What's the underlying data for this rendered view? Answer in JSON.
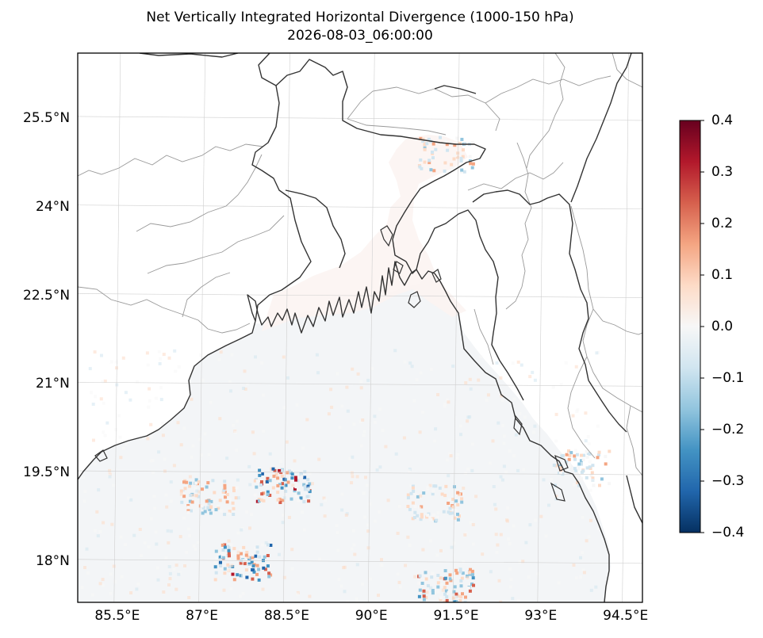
{
  "title": "Net Vertically Integrated Horizontal Divergence (1000-150 hPa)",
  "subtitle": "2026-08-03_06:00:00",
  "lon_ticks": [
    {
      "label": "85.5°E",
      "value": 85.5
    },
    {
      "label": "87°E",
      "value": 87.0
    },
    {
      "label": "88.5°E",
      "value": 88.5
    },
    {
      "label": "90°E",
      "value": 90.0
    },
    {
      "label": "91.5°E",
      "value": 91.5
    },
    {
      "label": "93°E",
      "value": 93.0
    },
    {
      "label": "94.5°E",
      "value": 94.5
    }
  ],
  "lat_ticks": [
    {
      "label": "25.5°N",
      "value": 25.5
    },
    {
      "label": "24°N",
      "value": 24.0
    },
    {
      "label": "22.5°N",
      "value": 22.5
    },
    {
      "label": "21°N",
      "value": 21.0
    },
    {
      "label": "19.5°N",
      "value": 19.5
    },
    {
      "label": "18°N",
      "value": 18.0
    }
  ],
  "map_extent": {
    "lon": [
      84.8,
      94.8
    ],
    "lat": [
      17.3,
      26.6
    ]
  },
  "colorbar": {
    "colormap": "RdBu_r",
    "range": [
      -0.4,
      0.4
    ],
    "tick_labels": [
      "0.4",
      "0.3",
      "0.2",
      "0.1",
      "0.0",
      "−0.1",
      "−0.2",
      "−0.3",
      "−0.4"
    ],
    "tick_values": [
      0.4,
      0.3,
      0.2,
      0.1,
      0.0,
      -0.1,
      -0.2,
      -0.3,
      -0.4
    ],
    "colors": [
      "#67001f",
      "#b2182b",
      "#d6604d",
      "#f4a582",
      "#fddbc7",
      "#f7f7f7",
      "#d1e5f0",
      "#92c5de",
      "#4393c3",
      "#2166ac",
      "#053061"
    ]
  },
  "hotspots": [
    {
      "lon": 88.4,
      "lat": 19.3,
      "amp": 0.35
    },
    {
      "lon": 87.7,
      "lat": 18.0,
      "amp": 0.3
    },
    {
      "lon": 91.3,
      "lat": 17.6,
      "amp": 0.25
    },
    {
      "lon": 91.1,
      "lat": 19.0,
      "amp": 0.15
    },
    {
      "lon": 91.3,
      "lat": 24.9,
      "amp": 0.15
    },
    {
      "lon": 93.7,
      "lat": 19.6,
      "amp": 0.15
    },
    {
      "lon": 87.1,
      "lat": 19.1,
      "amp": 0.2
    }
  ]
}
